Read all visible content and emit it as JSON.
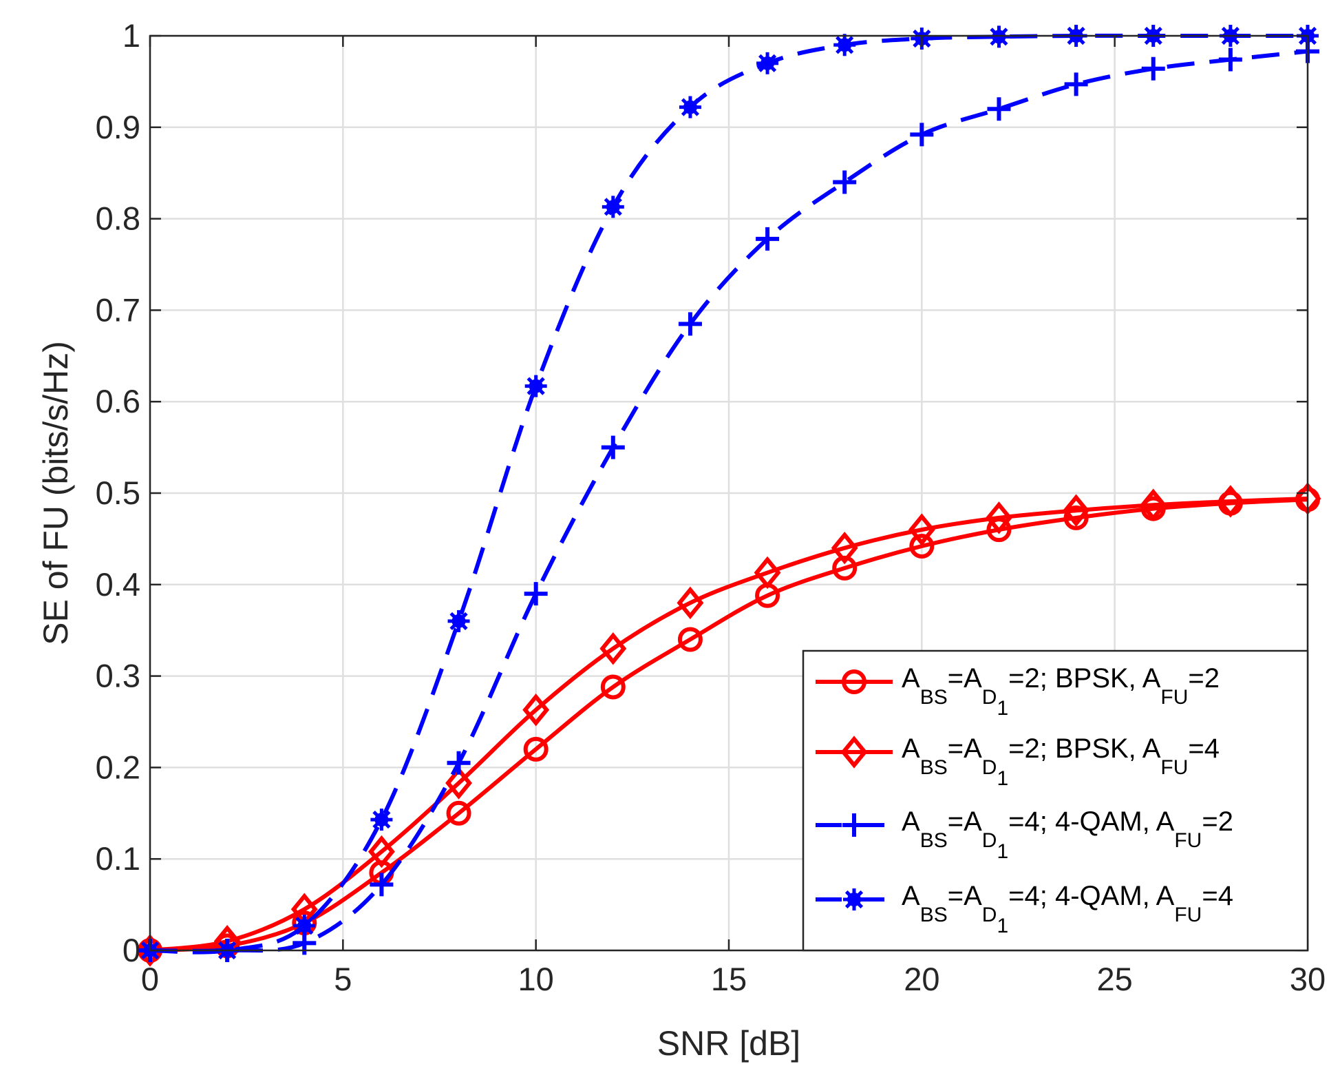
{
  "chart_data": {
    "type": "line",
    "title": "",
    "xlabel": "SNR [dB]",
    "ylabel": "SE of FU (bits/s/Hz)",
    "xlim": [
      0,
      30
    ],
    "ylim": [
      0,
      1
    ],
    "grid": true,
    "legend_position": "bottom-right",
    "x_ticks": [
      0,
      5,
      10,
      15,
      20,
      25,
      30
    ],
    "x_tick_labels": [
      "0",
      "5",
      "10",
      "15",
      "20",
      "25",
      "30"
    ],
    "y_ticks": [
      0,
      0.1,
      0.2,
      0.3,
      0.4,
      0.5,
      0.6,
      0.7,
      0.8,
      0.9,
      1
    ],
    "y_tick_labels": [
      "0",
      "0.1",
      "0.2",
      "0.3",
      "0.4",
      "0.5",
      "0.6",
      "0.7",
      "0.8",
      "0.9",
      "1"
    ],
    "x": [
      0,
      2,
      4,
      6,
      8,
      10,
      12,
      14,
      16,
      18,
      20,
      22,
      24,
      26,
      28,
      30
    ],
    "series": [
      {
        "name": "A_BS=A_D1=2; BPSK, A_FU=2",
        "color": "#ff0000",
        "line_style": "solid",
        "marker": "circle",
        "values": [
          0.0,
          0.005,
          0.03,
          0.085,
          0.15,
          0.22,
          0.288,
          0.34,
          0.388,
          0.418,
          0.442,
          0.46,
          0.473,
          0.483,
          0.489,
          0.493
        ],
        "legend_parts": [
          {
            "t": "A",
            "s": "n"
          },
          {
            "t": "BS",
            "s": "sub"
          },
          {
            "t": "=A",
            "s": "n"
          },
          {
            "t": "D",
            "s": "sub"
          },
          {
            "t": "1",
            "s": "subsub"
          },
          {
            "t": "=2; BPSK, A",
            "s": "n"
          },
          {
            "t": "FU",
            "s": "sub"
          },
          {
            "t": "=2",
            "s": "n"
          }
        ]
      },
      {
        "name": "A_BS=A_D1=2; BPSK, A_FU=4",
        "color": "#ff0000",
        "line_style": "solid",
        "marker": "diamond",
        "values": [
          0.0,
          0.01,
          0.045,
          0.108,
          0.183,
          0.263,
          0.33,
          0.38,
          0.413,
          0.44,
          0.46,
          0.473,
          0.481,
          0.487,
          0.491,
          0.494
        ],
        "legend_parts": [
          {
            "t": "A",
            "s": "n"
          },
          {
            "t": "BS",
            "s": "sub"
          },
          {
            "t": "=A",
            "s": "n"
          },
          {
            "t": "D",
            "s": "sub"
          },
          {
            "t": "1",
            "s": "subsub"
          },
          {
            "t": "=2; BPSK, A",
            "s": "n"
          },
          {
            "t": "FU",
            "s": "sub"
          },
          {
            "t": "=4",
            "s": "n"
          }
        ]
      },
      {
        "name": "A_BS=A_D1=4; 4-QAM, A_FU=2",
        "color": "#0000ff",
        "line_style": "dashed",
        "marker": "plus",
        "values": [
          0.0,
          0.0,
          0.008,
          0.072,
          0.205,
          0.39,
          0.55,
          0.685,
          0.778,
          0.84,
          0.892,
          0.92,
          0.947,
          0.964,
          0.974,
          0.983
        ],
        "legend_parts": [
          {
            "t": "A",
            "s": "n"
          },
          {
            "t": "BS",
            "s": "sub"
          },
          {
            "t": "=A",
            "s": "n"
          },
          {
            "t": "D",
            "s": "sub"
          },
          {
            "t": "1",
            "s": "subsub"
          },
          {
            "t": "=4; 4-QAM, A",
            "s": "n"
          },
          {
            "t": "FU",
            "s": "sub"
          },
          {
            "t": "=2",
            "s": "n"
          }
        ]
      },
      {
        "name": "A_BS=A_D1=4; 4-QAM, A_FU=4",
        "color": "#0000ff",
        "line_style": "dashed",
        "marker": "asterisk",
        "values": [
          0.0,
          0.0,
          0.027,
          0.143,
          0.36,
          0.617,
          0.813,
          0.922,
          0.97,
          0.99,
          0.997,
          0.999,
          1.0,
          1.0,
          1.0,
          1.0
        ],
        "legend_parts": [
          {
            "t": "A",
            "s": "n"
          },
          {
            "t": "BS",
            "s": "sub"
          },
          {
            "t": "=A",
            "s": "n"
          },
          {
            "t": "D",
            "s": "sub"
          },
          {
            "t": "1",
            "s": "subsub"
          },
          {
            "t": "=4; 4-QAM, A",
            "s": "n"
          },
          {
            "t": "FU",
            "s": "sub"
          },
          {
            "t": "=4",
            "s": "n"
          }
        ]
      }
    ]
  }
}
